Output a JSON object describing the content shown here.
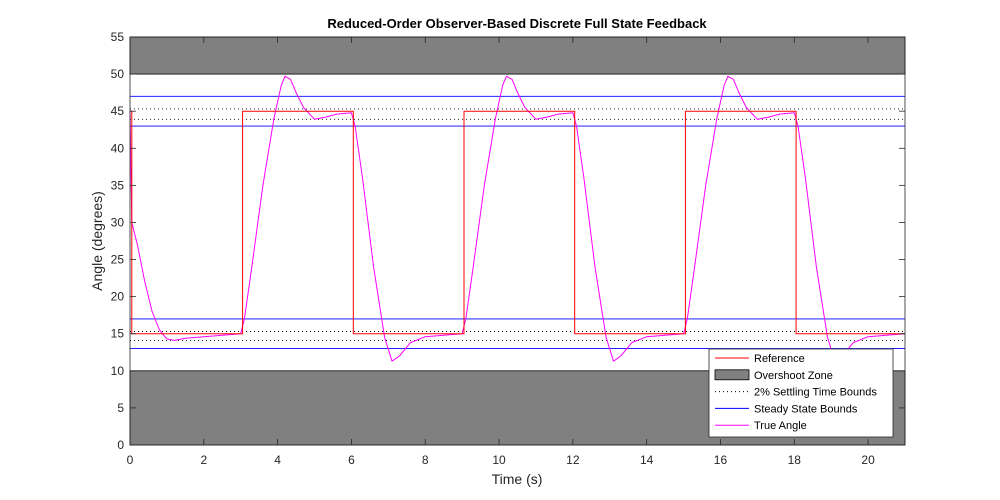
{
  "chart_data": {
    "type": "line",
    "title": "Reduced-Order Observer-Based Discrete Full State Feedback",
    "xlabel": "Time (s)",
    "ylabel": "Angle (degrees)",
    "xlim": [
      0,
      21
    ],
    "ylim": [
      0,
      55
    ],
    "xticks": [
      0,
      2,
      4,
      6,
      8,
      10,
      12,
      14,
      16,
      18,
      20
    ],
    "yticks": [
      0,
      5,
      10,
      15,
      20,
      25,
      30,
      35,
      40,
      45,
      50,
      55
    ],
    "grid": false,
    "legend_position": "bottom-right",
    "overshoot_zones": [
      {
        "y_from": 50,
        "y_to": 55
      },
      {
        "y_from": 0,
        "y_to": 10
      }
    ],
    "settling_bounds_2pct": [
      14.1,
      15.3,
      43.9,
      45.3
    ],
    "steady_state_bounds": [
      13,
      17,
      43,
      47
    ],
    "reference": {
      "low": 15,
      "high": 45,
      "x": [
        0,
        0.05,
        0.05,
        3.05,
        3.05,
        6.05,
        6.05,
        9.05,
        9.05,
        12.05,
        12.05,
        15.05,
        15.05,
        18.05,
        18.05,
        21
      ],
      "y": [
        45,
        45,
        15,
        15,
        45,
        45,
        15,
        15,
        45,
        45,
        15,
        15,
        45,
        45,
        15,
        15
      ]
    },
    "true_angle": {
      "x": [
        0,
        0.05,
        0.2,
        0.4,
        0.6,
        0.8,
        1.0,
        1.2,
        1.5,
        2.0,
        2.5,
        3.0,
        3.1,
        3.3,
        3.6,
        3.9,
        4.1,
        4.2,
        4.35,
        4.5,
        4.7,
        5.0,
        5.3,
        5.6,
        6.0,
        6.1,
        6.3,
        6.6,
        6.9,
        7.1,
        7.3,
        7.6,
        8.0,
        8.5,
        9.0,
        9.1,
        9.3,
        9.6,
        9.9,
        10.1,
        10.2,
        10.35,
        10.5,
        10.7,
        11.0,
        11.3,
        11.6,
        12.0,
        12.1,
        12.3,
        12.6,
        12.9,
        13.1,
        13.3,
        13.6,
        14.0,
        14.5,
        15.0,
        15.1,
        15.3,
        15.6,
        15.9,
        16.1,
        16.2,
        16.35,
        16.5,
        16.7,
        17.0,
        17.3,
        17.6,
        18.0,
        18.1,
        18.3,
        18.6,
        18.9,
        19.1,
        19.3,
        19.6,
        20.0,
        20.5,
        21.0
      ],
      "y": [
        45,
        30,
        27,
        22,
        18,
        15.5,
        14.3,
        14.1,
        14.4,
        14.6,
        14.8,
        15,
        17,
        24,
        35,
        44,
        48.5,
        49.7,
        49.3,
        47.5,
        45.5,
        43.9,
        44.2,
        44.6,
        44.8,
        43,
        36,
        24,
        14.5,
        11.3,
        12,
        13.8,
        14.6,
        14.8,
        15,
        17,
        24,
        35,
        44,
        48.5,
        49.7,
        49.3,
        47.5,
        45.5,
        43.9,
        44.2,
        44.6,
        44.8,
        43,
        36,
        24,
        14.5,
        11.3,
        12,
        13.8,
        14.6,
        14.8,
        15,
        17,
        24,
        35,
        44,
        48.5,
        49.7,
        49.3,
        47.5,
        45.5,
        43.9,
        44.2,
        44.6,
        44.8,
        43,
        36,
        24,
        14.5,
        11.3,
        12,
        13.8,
        14.6,
        14.8,
        15
      ]
    },
    "legend": [
      {
        "label": "Reference",
        "style": "line",
        "color": "#ff0000"
      },
      {
        "label": "Overshoot Zone",
        "style": "patch",
        "color": "#808080"
      },
      {
        "label": "2% Settling Time Bounds",
        "style": "dotted",
        "color": "#000000"
      },
      {
        "label": "Steady State Bounds",
        "style": "line",
        "color": "#0000ff"
      },
      {
        "label": "True Angle",
        "style": "line",
        "color": "#ff00ff"
      }
    ],
    "colors": {
      "reference": "#ff0000",
      "true_angle": "#ff00ff",
      "steady_state": "#0000ff",
      "settling": "#000000",
      "overshoot": "#808080"
    }
  }
}
